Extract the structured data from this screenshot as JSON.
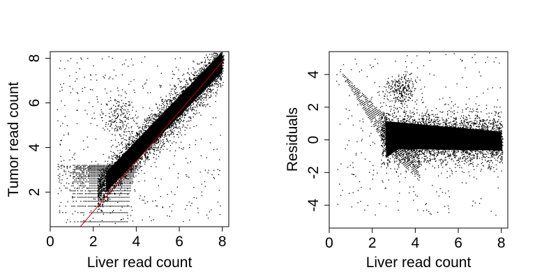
{
  "chart_data": [
    {
      "type": "scatter",
      "title": "",
      "xlabel": "Liver read count",
      "ylabel": "Tumor read count",
      "xlim": [
        0,
        8.3
      ],
      "ylim": [
        0.45,
        8.3
      ],
      "xticks": [
        "0",
        "2",
        "4",
        "6",
        "8"
      ],
      "xtick_values": [
        0,
        2,
        4,
        6,
        8
      ],
      "yticks": [
        "2",
        "4",
        "6",
        "8"
      ],
      "ytick_values": [
        2,
        4,
        6,
        8
      ],
      "grid": false,
      "point_color": "#000000",
      "fit_line": {
        "color": "#cc0000",
        "x": [
          1.4,
          8.0
        ],
        "y": [
          0.45,
          7.85
        ]
      },
      "description_of_distribution": {
        "main_band": {
          "x_range": [
            2.3,
            8.0
          ],
          "y_around_x_minus": 0.1,
          "spread": 0.55
        },
        "discrete_rows_y": [
          0.69,
          1.1,
          1.39,
          1.61,
          1.79,
          1.95,
          2.08,
          2.2,
          2.3,
          2.4,
          2.48,
          2.56,
          2.64,
          2.71,
          2.77,
          2.83,
          2.89,
          2.94,
          3.0,
          3.04,
          3.09,
          3.14,
          3.18,
          3.22
        ]
      }
    },
    {
      "type": "scatter",
      "title": "",
      "xlabel": "Liver read count",
      "ylabel": "Residuals",
      "xlim": [
        0,
        8.3
      ],
      "ylim": [
        -5.4,
        5.4
      ],
      "xticks": [
        "0",
        "2",
        "4",
        "6",
        "8"
      ],
      "xtick_values": [
        0,
        2,
        4,
        6,
        8
      ],
      "yticks": [
        "-4",
        "-2",
        "0",
        "2",
        "4"
      ],
      "ytick_values": [
        -4,
        -2,
        0,
        2,
        4
      ],
      "grid": false,
      "point_color": "#000000",
      "description_of_distribution": {
        "main_cloud": {
          "x_range": [
            2.6,
            8.0
          ],
          "y_center": 0.3,
          "spread": 0.7
        },
        "upper_cluster": {
          "x_center": 3.3,
          "y_center": 3.0
        },
        "diagonal_streaks": "negative-slope lines from x≈0.5 to x≈4"
      }
    }
  ]
}
